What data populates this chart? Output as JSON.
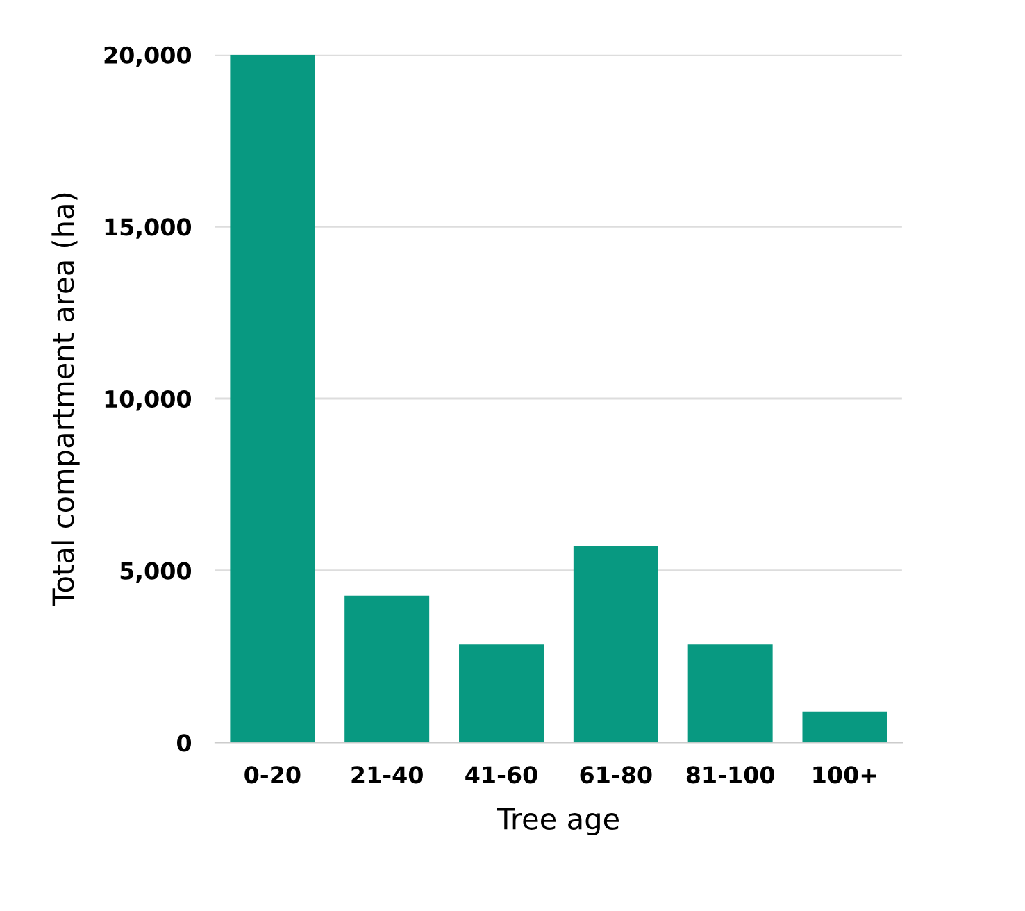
{
  "chart_data": {
    "type": "bar",
    "xlabel": "Tree age",
    "ylabel": "Total compartment area (ha)",
    "categories": [
      "0-20",
      "21-40",
      "41-60",
      "61-80",
      "81-100",
      "100+"
    ],
    "values": [
      20000,
      4270,
      2850,
      5700,
      2850,
      900
    ],
    "color": "#089981",
    "ylim": [
      0,
      20000
    ],
    "yticks": [
      {
        "value": 0,
        "label": "0"
      },
      {
        "value": 5000,
        "label": "5,000"
      },
      {
        "value": 10000,
        "label": "10,000"
      },
      {
        "value": 15000,
        "label": "15,000"
      },
      {
        "value": 20000,
        "label": "20,000"
      }
    ],
    "grid": "y"
  }
}
